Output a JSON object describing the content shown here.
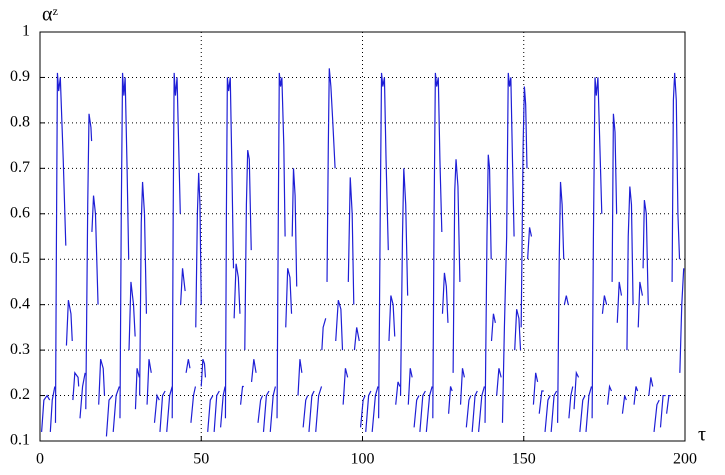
{
  "chart_data": {
    "type": "line",
    "y_label": "αᶻ",
    "x_label": "τ",
    "xlim": [
      0,
      200
    ],
    "xticks": [
      0,
      50,
      100,
      150,
      200
    ],
    "ylim": [
      0.1,
      1
    ],
    "yticks": [
      0.1,
      0.2,
      0.3,
      0.4,
      0.5,
      0.6,
      0.7,
      0.8,
      0.9,
      1
    ],
    "grid": true,
    "series": [
      {
        "color": "#1f1fd6",
        "x": [
          0.5,
          1.2,
          2.2,
          3,
          null,
          3.2,
          3.8,
          4.6,
          null,
          4.8,
          5.1,
          5.4,
          5.8,
          6.3,
          7.2,
          8,
          null,
          8.2,
          8.8,
          9.6,
          10,
          null,
          10.2,
          10.8,
          11.8,
          12,
          null,
          12.4,
          13.2,
          14,
          null,
          14.2,
          14.8,
          15.2,
          15.8,
          16,
          null,
          16.1,
          16.6,
          17.2,
          18,
          null,
          18.2,
          18.8,
          19.6,
          20,
          null,
          20.6,
          21.4,
          22.5,
          null,
          22.7,
          23.6,
          24.6,
          null,
          24.8,
          25.2,
          25.6,
          26,
          26.4,
          27,
          27.5,
          null,
          27.6,
          28.2,
          29,
          29.5,
          null,
          29.6,
          30.1,
          30.8,
          null,
          30.9,
          31.4,
          31.8,
          32.4,
          33,
          null,
          33.2,
          33.8,
          34.5,
          null,
          35.5,
          36.3,
          37,
          null,
          37.2,
          38,
          38.8,
          null,
          39.3,
          40.2,
          41,
          null,
          41,
          41.3,
          41.6,
          42,
          42.5,
          43,
          43.5,
          null,
          43.6,
          44.2,
          45,
          null,
          45.3,
          46,
          46.5,
          null,
          46.8,
          47.6,
          48.2,
          null,
          48.3,
          48.8,
          49.2,
          49.6,
          50,
          null,
          50,
          50.5,
          51,
          51.3,
          null,
          52,
          52.8,
          53.6,
          null,
          54,
          54.8,
          55.6,
          null,
          56,
          56.8,
          57.4,
          null,
          57.5,
          57.8,
          58.1,
          58.5,
          59,
          59.5,
          60,
          null,
          60.2,
          60.8,
          61.5,
          62,
          null,
          62.2,
          62.8,
          63.2,
          null,
          63.5,
          64,
          64.4,
          64.9,
          65.5,
          null,
          65.6,
          66.3,
          67,
          null,
          67.6,
          68.4,
          69,
          null,
          69.3,
          70.2,
          71,
          null,
          71.4,
          72.3,
          73,
          null,
          73.5,
          73.9,
          74.2,
          74.6,
          75,
          75.6,
          76,
          null,
          76.2,
          76.8,
          77.5,
          78,
          null,
          78.2,
          78.6,
          79.1,
          79.6,
          null,
          80,
          80.6,
          81.2,
          null,
          81.6,
          82.4,
          83,
          null,
          83.4,
          84.3,
          85,
          null,
          85.5,
          86.4,
          87.3,
          null,
          87.4,
          87.8,
          88.6,
          null,
          89,
          89.4,
          89.7,
          90.2,
          90.8,
          91.5,
          null,
          91.7,
          92.5,
          93.3,
          93.8,
          null,
          94,
          94.7,
          95.4,
          null,
          95.6,
          96.2,
          96.8,
          97.3,
          null,
          97.5,
          98.2,
          99,
          null,
          99.4,
          100.2,
          100.8,
          null,
          101,
          101.9,
          102.6,
          null,
          103,
          104,
          104.8,
          null,
          105,
          105.5,
          105.9,
          106.3,
          106.8,
          107.3,
          108,
          null,
          108.2,
          108.8,
          109.5,
          110,
          null,
          110.3,
          111,
          111.6,
          null,
          111.8,
          112.4,
          112.8,
          113.4,
          114,
          null,
          114.2,
          114.8,
          115.4,
          null,
          116,
          116.8,
          117.5,
          null,
          117.8,
          118.7,
          119.5,
          null,
          119.8,
          120.8,
          121.6,
          null,
          121.8,
          122.2,
          122.6,
          123,
          123.5,
          124,
          124.6,
          null,
          124.8,
          125.4,
          126,
          126.5,
          null,
          126.7,
          127.3,
          127.8,
          null,
          128.1,
          128.6,
          129,
          129.6,
          130.2,
          null,
          130.4,
          131,
          131.6,
          null,
          132.2,
          133,
          133.6,
          null,
          134,
          134.9,
          135.6,
          null,
          136,
          137,
          137.8,
          null,
          138,
          138.6,
          139,
          139.4,
          139.9,
          null,
          140,
          140.6,
          141.2,
          null,
          141.6,
          142.3,
          143,
          null,
          143.4,
          144,
          144.7,
          145.2,
          145.6,
          146,
          146.5,
          147,
          null,
          147.2,
          147.8,
          148.5,
          149,
          null,
          149.2,
          149.8,
          150.2,
          150.6,
          151,
          null,
          151.2,
          151.8,
          152.4,
          null,
          153,
          153.7,
          154.3,
          null,
          154.8,
          155.6,
          156.2,
          null,
          156.6,
          157.5,
          158.2,
          null,
          158.5,
          159.4,
          160.2,
          null,
          160.5,
          161,
          161.4,
          161.9,
          162.4,
          null,
          162.6,
          163.2,
          163.8,
          null,
          164,
          164.6,
          165.2,
          null,
          165.6,
          166.3,
          167,
          null,
          167.4,
          168.3,
          169,
          null,
          169.3,
          170.2,
          171,
          null,
          171.2,
          171.6,
          172.1,
          172.5,
          173,
          173.6,
          174.2,
          null,
          174.4,
          175,
          175.7,
          null,
          176,
          176.6,
          177.2,
          null,
          177.4,
          177.8,
          178.3,
          178.8,
          null,
          179,
          179.6,
          180.3,
          null,
          180.6,
          181.3,
          181.8,
          null,
          182,
          182.4,
          182.9,
          183.4,
          183.9,
          null,
          184.2,
          184.8,
          185.3,
          null,
          185.5,
          186,
          186.8,
          null,
          187,
          187.4,
          188,
          188.6,
          null,
          188.8,
          189.4,
          190,
          null,
          190.4,
          191.3,
          192,
          null,
          192.4,
          193.2,
          194,
          null,
          194.3,
          195,
          195.6,
          null,
          196,
          196.4,
          196.8,
          197.3,
          197.8,
          198.3,
          null,
          198.4,
          199,
          199.6
        ],
        "values": [
          0.12,
          0.19,
          0.2,
          0.19,
          null,
          0.12,
          0.19,
          0.22,
          null,
          0.14,
          0.55,
          0.91,
          0.87,
          0.9,
          0.72,
          0.53,
          null,
          0.31,
          0.41,
          0.38,
          0.32,
          null,
          0.19,
          0.25,
          0.24,
          0.22,
          null,
          0.15,
          0.22,
          0.25,
          null,
          0.17,
          0.62,
          0.82,
          0.79,
          0.76,
          null,
          0.56,
          0.64,
          0.6,
          0.4,
          null,
          0.18,
          0.28,
          0.26,
          0.2,
          null,
          0.11,
          0.19,
          0.2,
          null,
          0.12,
          0.2,
          0.22,
          null,
          0.15,
          0.6,
          0.91,
          0.86,
          0.9,
          0.7,
          0.5,
          null,
          0.3,
          0.45,
          0.4,
          0.33,
          null,
          0.17,
          0.26,
          0.24,
          null,
          0.2,
          0.58,
          0.67,
          0.6,
          0.38,
          null,
          0.18,
          0.28,
          0.25,
          null,
          0.14,
          0.2,
          0.19,
          null,
          0.12,
          0.2,
          0.21,
          null,
          0.12,
          0.2,
          0.22,
          null,
          0.15,
          0.6,
          0.91,
          0.86,
          0.9,
          0.75,
          0.6,
          null,
          0.4,
          0.48,
          0.43,
          null,
          0.25,
          0.28,
          0.26,
          null,
          0.14,
          0.2,
          0.22,
          null,
          0.35,
          0.6,
          0.69,
          0.62,
          0.4,
          null,
          0.22,
          0.28,
          0.27,
          0.24,
          null,
          0.12,
          0.19,
          0.2,
          null,
          0.12,
          0.2,
          0.21,
          null,
          0.13,
          0.2,
          0.22,
          null,
          0.15,
          0.6,
          0.9,
          0.87,
          0.9,
          0.7,
          0.48,
          null,
          0.37,
          0.49,
          0.46,
          0.38,
          null,
          0.18,
          0.22,
          0.22,
          null,
          0.3,
          0.62,
          0.74,
          0.72,
          0.52,
          null,
          0.23,
          0.28,
          0.25,
          null,
          0.14,
          0.19,
          0.2,
          null,
          0.12,
          0.2,
          0.21,
          null,
          0.12,
          0.2,
          0.22,
          null,
          0.15,
          0.6,
          0.91,
          0.88,
          0.9,
          0.75,
          0.55,
          null,
          0.35,
          0.48,
          0.46,
          0.38,
          null,
          0.55,
          0.7,
          0.64,
          0.44,
          null,
          0.2,
          0.28,
          0.25,
          null,
          0.13,
          0.19,
          0.2,
          null,
          0.12,
          0.2,
          0.21,
          null,
          0.12,
          0.2,
          0.22,
          null,
          0.3,
          0.35,
          0.37,
          null,
          0.45,
          0.75,
          0.92,
          0.88,
          0.8,
          0.7,
          null,
          0.32,
          0.41,
          0.39,
          0.3,
          null,
          0.18,
          0.26,
          0.24,
          null,
          0.45,
          0.68,
          0.6,
          0.4,
          null,
          0.3,
          0.35,
          0.32,
          null,
          0.13,
          0.19,
          0.2,
          null,
          0.12,
          0.2,
          0.21,
          null,
          0.12,
          0.2,
          0.22,
          null,
          0.15,
          0.6,
          0.91,
          0.88,
          0.9,
          0.72,
          0.52,
          null,
          0.32,
          0.42,
          0.4,
          0.33,
          null,
          0.18,
          0.23,
          0.22,
          null,
          0.2,
          0.55,
          0.7,
          0.62,
          0.42,
          null,
          0.18,
          0.26,
          0.24,
          null,
          0.13,
          0.19,
          0.2,
          null,
          0.12,
          0.2,
          0.21,
          null,
          0.12,
          0.2,
          0.22,
          null,
          0.15,
          0.6,
          0.91,
          0.88,
          0.9,
          0.72,
          0.56,
          null,
          0.38,
          0.47,
          0.44,
          0.36,
          null,
          0.16,
          0.22,
          0.21,
          null,
          0.25,
          0.65,
          0.72,
          0.66,
          0.45,
          null,
          0.18,
          0.26,
          0.24,
          null,
          0.13,
          0.19,
          0.2,
          null,
          0.12,
          0.2,
          0.21,
          null,
          0.12,
          0.2,
          0.22,
          null,
          0.14,
          0.55,
          0.73,
          0.7,
          0.5,
          null,
          0.32,
          0.38,
          0.36,
          null,
          0.2,
          0.26,
          0.24,
          null,
          0.14,
          0.35,
          0.55,
          0.91,
          0.88,
          0.9,
          0.72,
          0.55,
          null,
          0.3,
          0.39,
          0.37,
          0.3,
          null,
          0.35,
          0.75,
          0.88,
          0.84,
          0.7,
          null,
          0.5,
          0.57,
          0.55,
          null,
          0.18,
          0.25,
          0.23,
          null,
          0.16,
          0.21,
          0.21,
          null,
          0.12,
          0.19,
          0.2,
          null,
          0.12,
          0.2,
          0.21,
          null,
          0.14,
          0.5,
          0.67,
          0.62,
          0.5,
          null,
          0.4,
          0.42,
          0.4,
          null,
          0.15,
          0.2,
          0.22,
          null,
          0.17,
          0.25,
          0.24,
          null,
          0.12,
          0.19,
          0.2,
          null,
          0.12,
          0.2,
          0.22,
          null,
          0.15,
          0.55,
          0.9,
          0.86,
          0.9,
          0.75,
          0.6,
          null,
          0.38,
          0.42,
          0.4,
          null,
          0.18,
          0.22,
          0.21,
          null,
          0.45,
          0.82,
          0.78,
          0.6,
          null,
          0.36,
          0.45,
          0.42,
          null,
          0.16,
          0.2,
          0.19,
          null,
          0.3,
          0.55,
          0.66,
          0.62,
          0.4,
          null,
          0.18,
          0.22,
          0.21,
          null,
          0.35,
          0.45,
          0.42,
          null,
          0.48,
          0.63,
          0.6,
          0.4,
          null,
          0.2,
          0.24,
          0.22,
          null,
          0.12,
          0.18,
          0.19,
          null,
          0.13,
          0.2,
          0.2,
          null,
          0.16,
          0.2,
          0.2,
          null,
          0.45,
          0.85,
          0.91,
          0.85,
          0.6,
          0.5,
          null,
          0.25,
          0.4,
          0.48
        ]
      }
    ]
  }
}
